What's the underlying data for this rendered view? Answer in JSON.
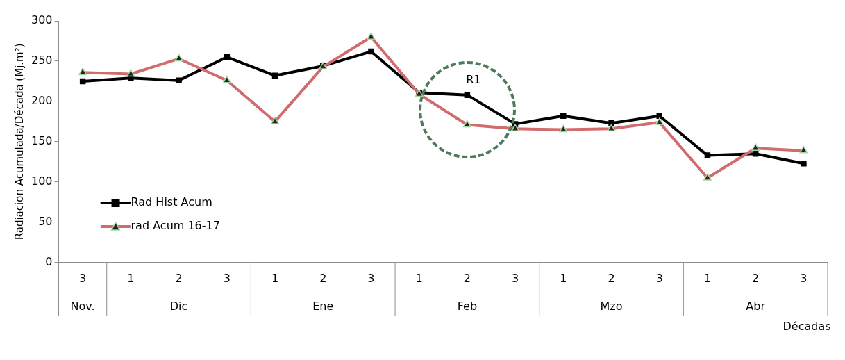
{
  "chart_data": {
    "type": "line",
    "ylabel": "Radiacion Acumulada/Década (Mj.m²)",
    "xlabel": "Décadas",
    "categories": [
      "3",
      "1",
      "2",
      "3",
      "1",
      "2",
      "3",
      "1",
      "2",
      "3",
      "1",
      "2",
      "3",
      "1",
      "2",
      "3"
    ],
    "series": [
      {
        "name": "Rad Hist Acum",
        "color": "#000000",
        "marker": "square",
        "values": [
          225,
          229,
          226,
          255,
          232,
          244,
          262,
          211,
          208,
          172,
          182,
          173,
          182,
          133,
          135,
          123
        ]
      },
      {
        "name": "rad Acum 16-17",
        "color": "#d06c6c",
        "marker": "triangle",
        "values": [
          236,
          234,
          253,
          226,
          175,
          243,
          280,
          209,
          171,
          166,
          165,
          166,
          174,
          105,
          142,
          139
        ]
      }
    ],
    "ylim": [
      0,
      300
    ],
    "yticks": [
      0,
      50,
      100,
      150,
      200,
      250,
      300
    ],
    "annotations": [
      "R1",
      "Nov.",
      "Dic",
      "Ene",
      "Feb",
      "Mzo",
      "Abr"
    ],
    "legend": "left",
    "line_style": "solid"
  }
}
